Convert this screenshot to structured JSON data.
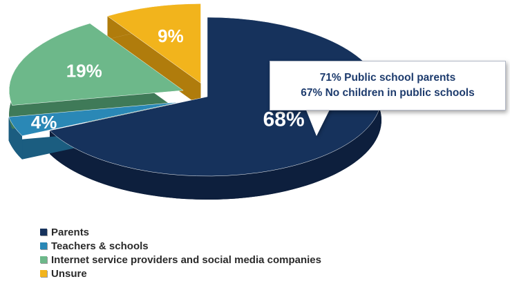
{
  "chart_data": {
    "type": "pie",
    "categories": [
      "Parents",
      "Teachers & schools",
      "Internet service providers and social media companies",
      "Unsure"
    ],
    "values": [
      68,
      4,
      19,
      9
    ],
    "data_labels": [
      "68%",
      "4%",
      "19%",
      "9%"
    ],
    "colors": [
      "#16325c",
      "#2a88b6",
      "#6db88a",
      "#f2b41c"
    ],
    "side_colors": [
      "#0d1f3d",
      "#1b5d80",
      "#3f7a58",
      "#b07c0c"
    ],
    "label_colors": [
      "#ffffff",
      "#ffffff",
      "#ffffff",
      "#ffffff"
    ],
    "legend_placement": "bottom-left",
    "annotation": {
      "lines": [
        "71% Public school parents",
        "67% No children in public schools"
      ]
    }
  }
}
